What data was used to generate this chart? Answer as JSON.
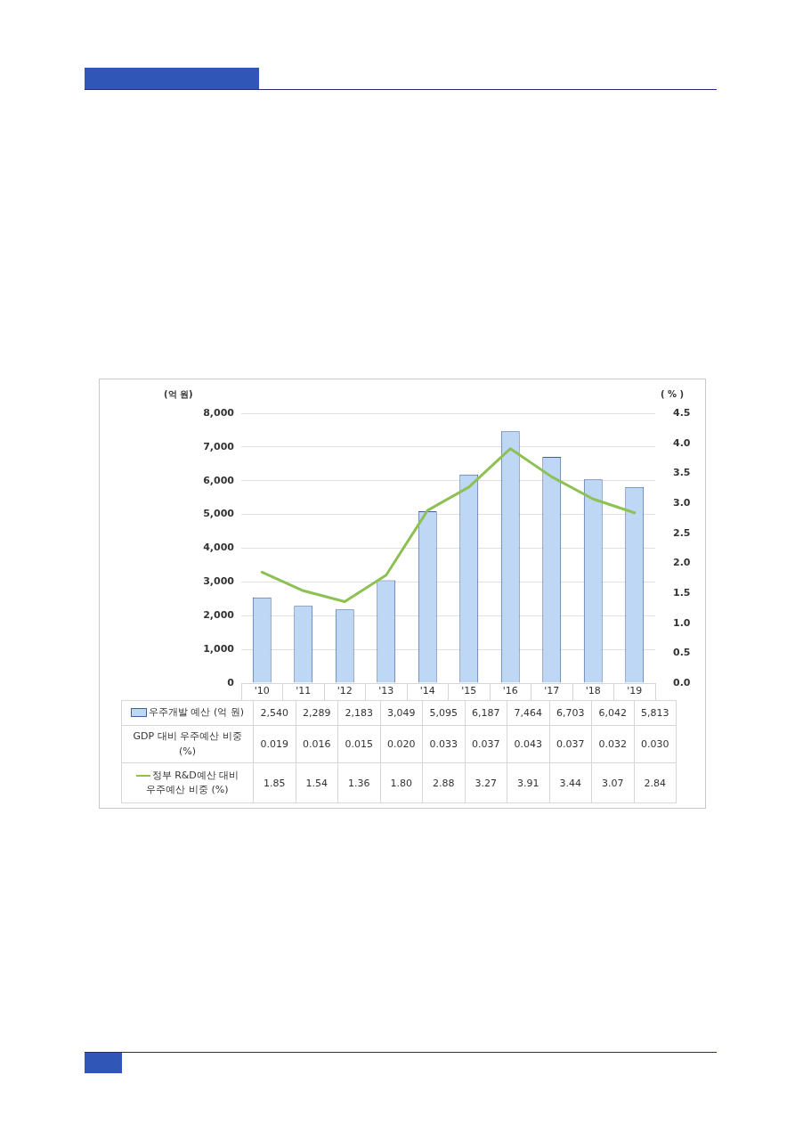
{
  "chart_data": {
    "type": "bar",
    "ylabel": "(억 원)",
    "y2label": "( % )",
    "categories": [
      "'10",
      "'11",
      "'12",
      "'13",
      "'14",
      "'15",
      "'16",
      "'17",
      "'18",
      "'19"
    ],
    "series": [
      {
        "name": "우주개발 예산 (억 원)",
        "color": "#bdd7f5",
        "values": [
          2540,
          2289,
          2183,
          3049,
          5095,
          6187,
          7464,
          6703,
          6042,
          5813
        ],
        "value_labels": [
          "2,540",
          "2,289",
          "2,183",
          "3,049",
          "5,095",
          "6,187",
          "7,464",
          "6,703",
          "6,042",
          "5,813"
        ]
      },
      {
        "name": "GDP 대비 우주예산 비중 (%)",
        "values": [
          0.019,
          0.016,
          0.015,
          0.02,
          0.033,
          0.037,
          0.043,
          0.037,
          0.032,
          0.03
        ],
        "value_labels": [
          "0.019",
          "0.016",
          "0.015",
          "0.020",
          "0.033",
          "0.037",
          "0.043",
          "0.037",
          "0.032",
          "0.030"
        ]
      },
      {
        "name": "정부 R&D예산 대비 우주예산 비중 (%)",
        "type": "line",
        "axis": "y2",
        "color": "#8dc153",
        "values": [
          1.85,
          1.54,
          1.36,
          1.8,
          2.88,
          3.27,
          3.91,
          3.44,
          3.07,
          2.84
        ],
        "value_labels": [
          "1.85",
          "1.54",
          "1.36",
          "1.80",
          "2.88",
          "3.27",
          "3.91",
          "3.44",
          "3.07",
          "2.84"
        ]
      }
    ],
    "ylim": [
      0,
      8000
    ],
    "yticks": [
      {
        "value": 0,
        "label": "0"
      },
      {
        "value": 1000,
        "label": "1,000"
      },
      {
        "value": 2000,
        "label": "2,000"
      },
      {
        "value": 3000,
        "label": "3,000"
      },
      {
        "value": 4000,
        "label": "4,000"
      },
      {
        "value": 5000,
        "label": "5,000"
      },
      {
        "value": 6000,
        "label": "6,000"
      },
      {
        "value": 7000,
        "label": "7,000"
      },
      {
        "value": 8000,
        "label": "8,000"
      }
    ],
    "y2lim": [
      0,
      4.5
    ],
    "y2ticks": [
      {
        "value": 0,
        "label": "0.0"
      },
      {
        "value": 0.5,
        "label": "0.5"
      },
      {
        "value": 1,
        "label": "1.0"
      },
      {
        "value": 1.5,
        "label": "1.5"
      },
      {
        "value": 2,
        "label": "2.0"
      },
      {
        "value": 2.5,
        "label": "2.5"
      },
      {
        "value": 3,
        "label": "3.0"
      },
      {
        "value": 3.5,
        "label": "3.5"
      },
      {
        "value": 4,
        "label": "4.0"
      },
      {
        "value": 4.5,
        "label": "4.5"
      }
    ],
    "grid": "y",
    "legend": "bottom",
    "marker": "none",
    "line_style": "solid"
  }
}
